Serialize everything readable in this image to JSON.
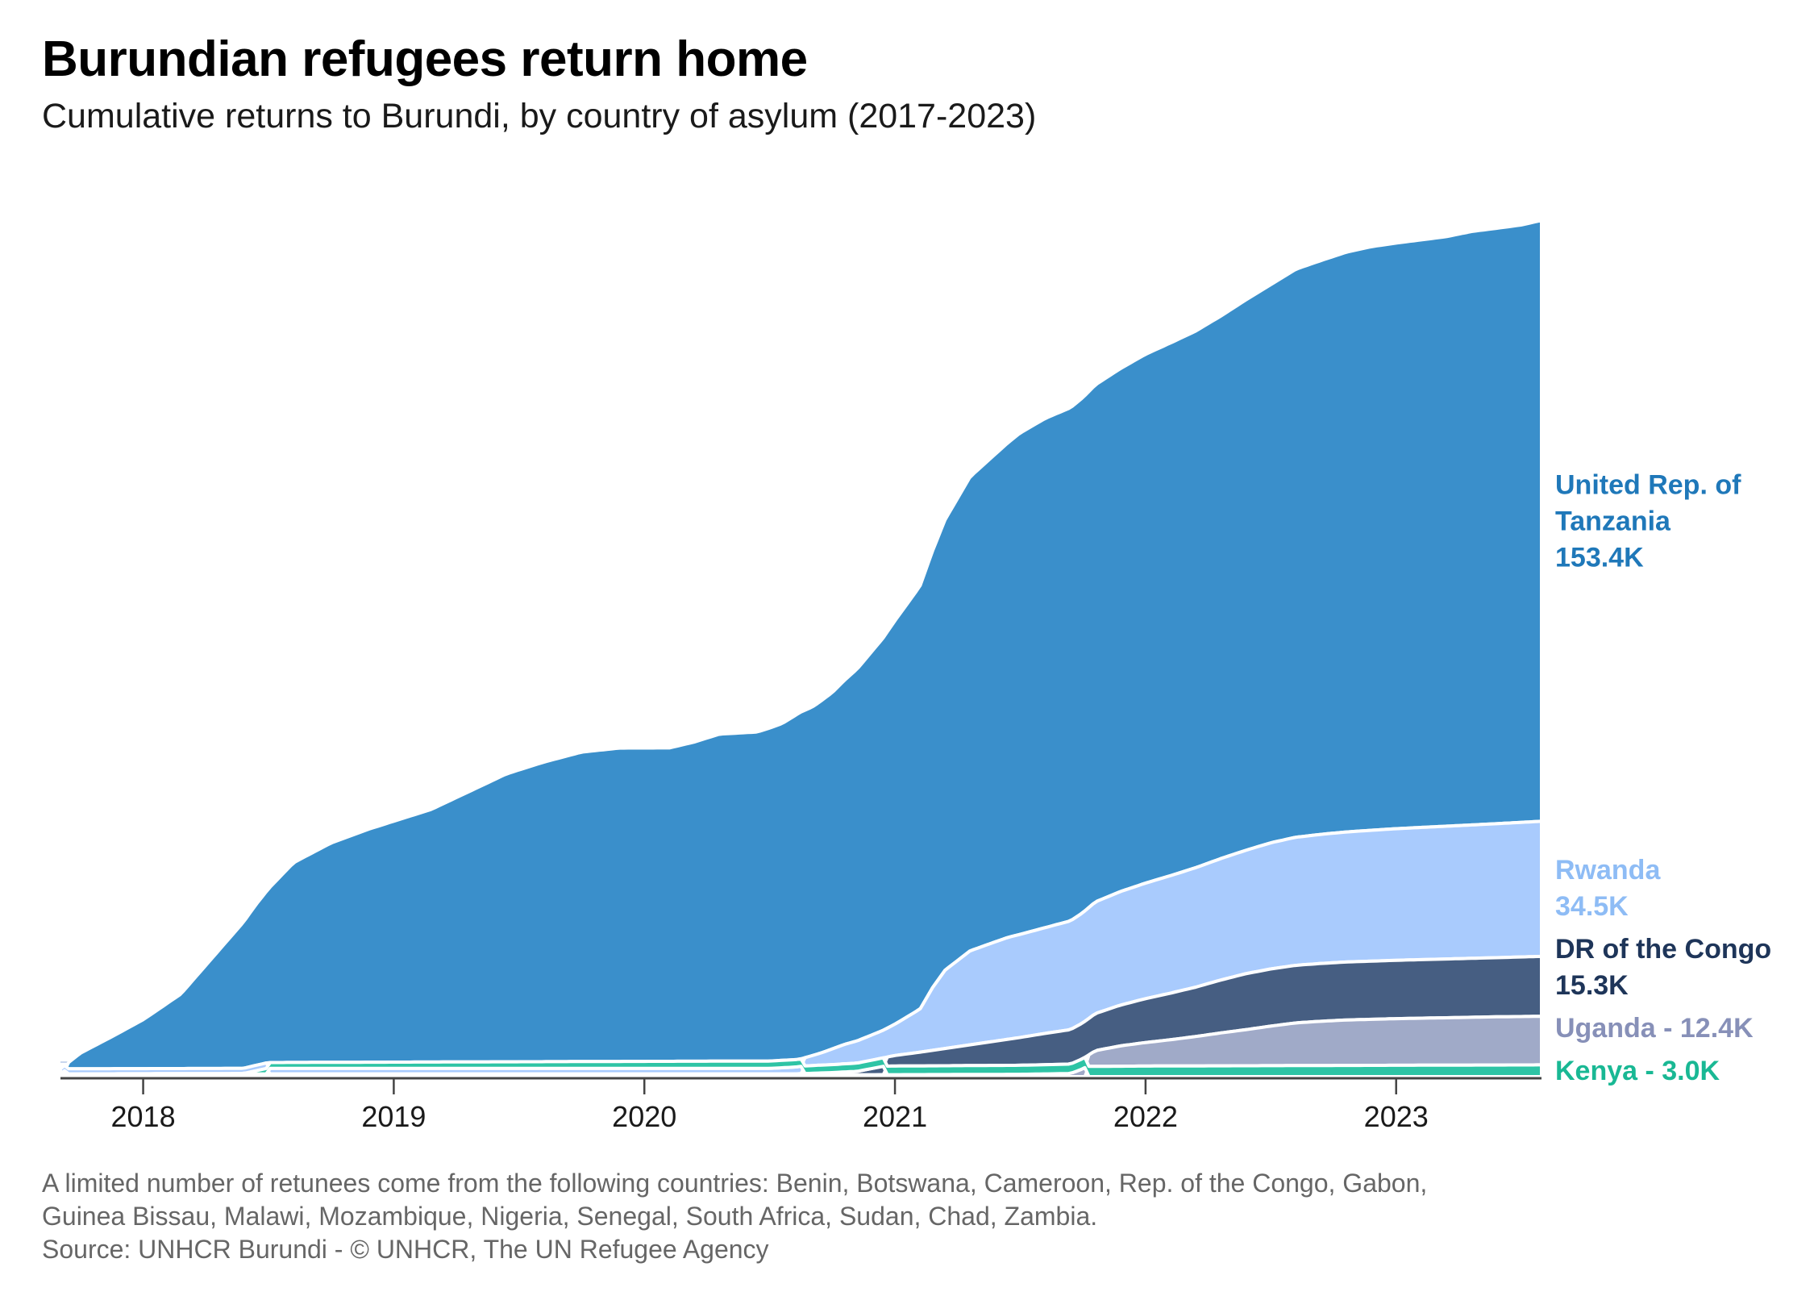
{
  "header": {
    "title": "Burundian refugees return home",
    "subtitle": "Cumulative returns to Burundi, by country of asylum (2017-2023)"
  },
  "footer": {
    "note_line1": "A limited number of retunees come from the following countries: Benin, Botswana, Cameroon, Rep. of the Congo, Gabon,",
    "note_line2": "Guinea Bissau, Malawi, Mozambique, Nigeria, Senegal, South Africa, Sudan, Chad, Zambia.",
    "source": "Source: UNHCR Burundi - © UNHCR, The UN Refugee Agency"
  },
  "chart_data": {
    "type": "area",
    "stacked": true,
    "stack_order": "ranked by value at each date, largest on top",
    "x_unit": "year",
    "x_ticks": [
      "2018",
      "2019",
      "2020",
      "2021",
      "2022",
      "2023"
    ],
    "xlim": [
      2017.67,
      2023.58
    ],
    "ylim": [
      0,
      224000
    ],
    "grid": false,
    "legend_placement": "direct labels at right end of each band",
    "series": [
      {
        "name": "United Rep. of Tanzania",
        "color": "#3a8fcb",
        "label_color": "#1f78b9",
        "label_lines": [
          "United Rep. of",
          "Tanzania",
          "153.4K"
        ],
        "points": [
          [
            2017.67,
            0
          ],
          [
            2017.75,
            4000
          ],
          [
            2017.9,
            9000
          ],
          [
            2018.0,
            12500
          ],
          [
            2018.15,
            19000
          ],
          [
            2018.3,
            30000
          ],
          [
            2018.45,
            41000
          ],
          [
            2018.6,
            51000
          ],
          [
            2018.75,
            56000
          ],
          [
            2018.9,
            59500
          ],
          [
            2019.0,
            61500
          ],
          [
            2019.15,
            64500
          ],
          [
            2019.3,
            69000
          ],
          [
            2019.45,
            73500
          ],
          [
            2019.6,
            76500
          ],
          [
            2019.75,
            79000
          ],
          [
            2019.9,
            80000
          ],
          [
            2020.0,
            80000
          ],
          [
            2020.1,
            80000
          ],
          [
            2020.2,
            81500
          ],
          [
            2020.3,
            83500
          ],
          [
            2020.45,
            84000
          ],
          [
            2020.55,
            86000
          ],
          [
            2020.62,
            88500
          ],
          [
            2020.67,
            89000
          ],
          [
            2020.75,
            91000
          ],
          [
            2020.85,
            95000
          ],
          [
            2020.95,
            100000
          ],
          [
            2021.0,
            103000
          ],
          [
            2021.1,
            108000
          ],
          [
            2021.2,
            115000
          ],
          [
            2021.3,
            121000
          ],
          [
            2021.4,
            124500
          ],
          [
            2021.5,
            128000
          ],
          [
            2021.6,
            130000
          ],
          [
            2021.7,
            131000
          ],
          [
            2021.8,
            132000
          ],
          [
            2021.9,
            133500
          ],
          [
            2022.0,
            135000
          ],
          [
            2022.1,
            136000
          ],
          [
            2022.2,
            137000
          ],
          [
            2022.3,
            138500
          ],
          [
            2022.4,
            140500
          ],
          [
            2022.5,
            142500
          ],
          [
            2022.6,
            145000
          ],
          [
            2022.7,
            146500
          ],
          [
            2022.8,
            148000
          ],
          [
            2022.9,
            149000
          ],
          [
            2023.0,
            149500
          ],
          [
            2023.1,
            150000
          ],
          [
            2023.2,
            150500
          ],
          [
            2023.3,
            151500
          ],
          [
            2023.4,
            152000
          ],
          [
            2023.5,
            152500
          ],
          [
            2023.58,
            153400
          ]
        ]
      },
      {
        "name": "Rwanda",
        "color": "#a9cbfd",
        "label_color": "#8ebcf5",
        "label_lines": [
          "Rwanda",
          "34.5K"
        ],
        "points": [
          [
            2017.67,
            1300
          ],
          [
            2018.4,
            1300
          ],
          [
            2018.45,
            1400
          ],
          [
            2020.5,
            1400
          ],
          [
            2020.62,
            1800
          ],
          [
            2020.7,
            3000
          ],
          [
            2020.8,
            5000
          ],
          [
            2020.95,
            7000
          ],
          [
            2021.0,
            8000
          ],
          [
            2021.05,
            9500
          ],
          [
            2021.1,
            11000
          ],
          [
            2021.12,
            13000
          ],
          [
            2021.15,
            16000
          ],
          [
            2021.2,
            20000
          ],
          [
            2021.3,
            24000
          ],
          [
            2021.45,
            26000
          ],
          [
            2021.6,
            27000
          ],
          [
            2021.8,
            28500
          ],
          [
            2022.0,
            29500
          ],
          [
            2022.2,
            30500
          ],
          [
            2022.4,
            31500
          ],
          [
            2022.5,
            32200
          ],
          [
            2022.6,
            32700
          ],
          [
            2022.8,
            33200
          ],
          [
            2023.0,
            33600
          ],
          [
            2023.2,
            33900
          ],
          [
            2023.4,
            34200
          ],
          [
            2023.58,
            34500
          ]
        ]
      },
      {
        "name": "DR of the Congo",
        "color": "#465e82",
        "label_color": "#1e3559",
        "label_lines": [
          "DR of the Congo",
          "15.3K"
        ],
        "points": [
          [
            2017.67,
            300
          ],
          [
            2020.6,
            300
          ],
          [
            2020.75,
            600
          ],
          [
            2020.85,
            900
          ],
          [
            2020.9,
            1500
          ],
          [
            2021.0,
            2700
          ],
          [
            2021.1,
            3500
          ],
          [
            2021.2,
            4400
          ],
          [
            2021.3,
            5300
          ],
          [
            2021.4,
            6200
          ],
          [
            2021.5,
            7100
          ],
          [
            2021.6,
            8000
          ],
          [
            2021.7,
            8800
          ],
          [
            2021.8,
            9500
          ],
          [
            2021.9,
            10400
          ],
          [
            2022.0,
            11200
          ],
          [
            2022.1,
            11900
          ],
          [
            2022.2,
            12600
          ],
          [
            2022.3,
            13500
          ],
          [
            2022.4,
            14300
          ],
          [
            2022.5,
            14600
          ],
          [
            2022.6,
            14700
          ],
          [
            2022.8,
            14800
          ],
          [
            2023.0,
            14900
          ],
          [
            2023.2,
            15000
          ],
          [
            2023.4,
            15100
          ],
          [
            2023.58,
            15300
          ]
        ]
      },
      {
        "name": "Uganda",
        "color": "#a0aac8",
        "label_color": "#8790b8",
        "label_lines": [
          "Uganda - 12.4K"
        ],
        "points": [
          [
            2017.67,
            400
          ],
          [
            2020.6,
            400
          ],
          [
            2021.0,
            500
          ],
          [
            2021.5,
            600
          ],
          [
            2021.7,
            800
          ],
          [
            2021.75,
            2000
          ],
          [
            2021.8,
            4000
          ],
          [
            2021.9,
            5200
          ],
          [
            2022.0,
            6000
          ],
          [
            2022.1,
            6700
          ],
          [
            2022.2,
            7500
          ],
          [
            2022.3,
            8400
          ],
          [
            2022.4,
            9200
          ],
          [
            2022.5,
            10100
          ],
          [
            2022.6,
            10900
          ],
          [
            2022.7,
            11300
          ],
          [
            2022.8,
            11600
          ],
          [
            2023.0,
            11900
          ],
          [
            2023.2,
            12100
          ],
          [
            2023.4,
            12300
          ],
          [
            2023.58,
            12400
          ]
        ]
      },
      {
        "name": "Kenya",
        "color": "#2ec4a5",
        "label_color": "#19b894",
        "label_lines": [
          "Kenya - 3.0K"
        ],
        "points": [
          [
            2017.67,
            0
          ],
          [
            2018.4,
            100
          ],
          [
            2018.5,
            1500
          ],
          [
            2019.0,
            1600
          ],
          [
            2020.0,
            1800
          ],
          [
            2020.6,
            1900
          ],
          [
            2020.7,
            2000
          ],
          [
            2021.0,
            2200
          ],
          [
            2021.5,
            2300
          ],
          [
            2021.7,
            2400
          ],
          [
            2021.75,
            2600
          ],
          [
            2022.0,
            2700
          ],
          [
            2022.5,
            2800
          ],
          [
            2023.0,
            2900
          ],
          [
            2023.58,
            3000
          ]
        ]
      }
    ],
    "minor_series_note": "Other countries shown as thin unlabeled lines at the bottom"
  }
}
